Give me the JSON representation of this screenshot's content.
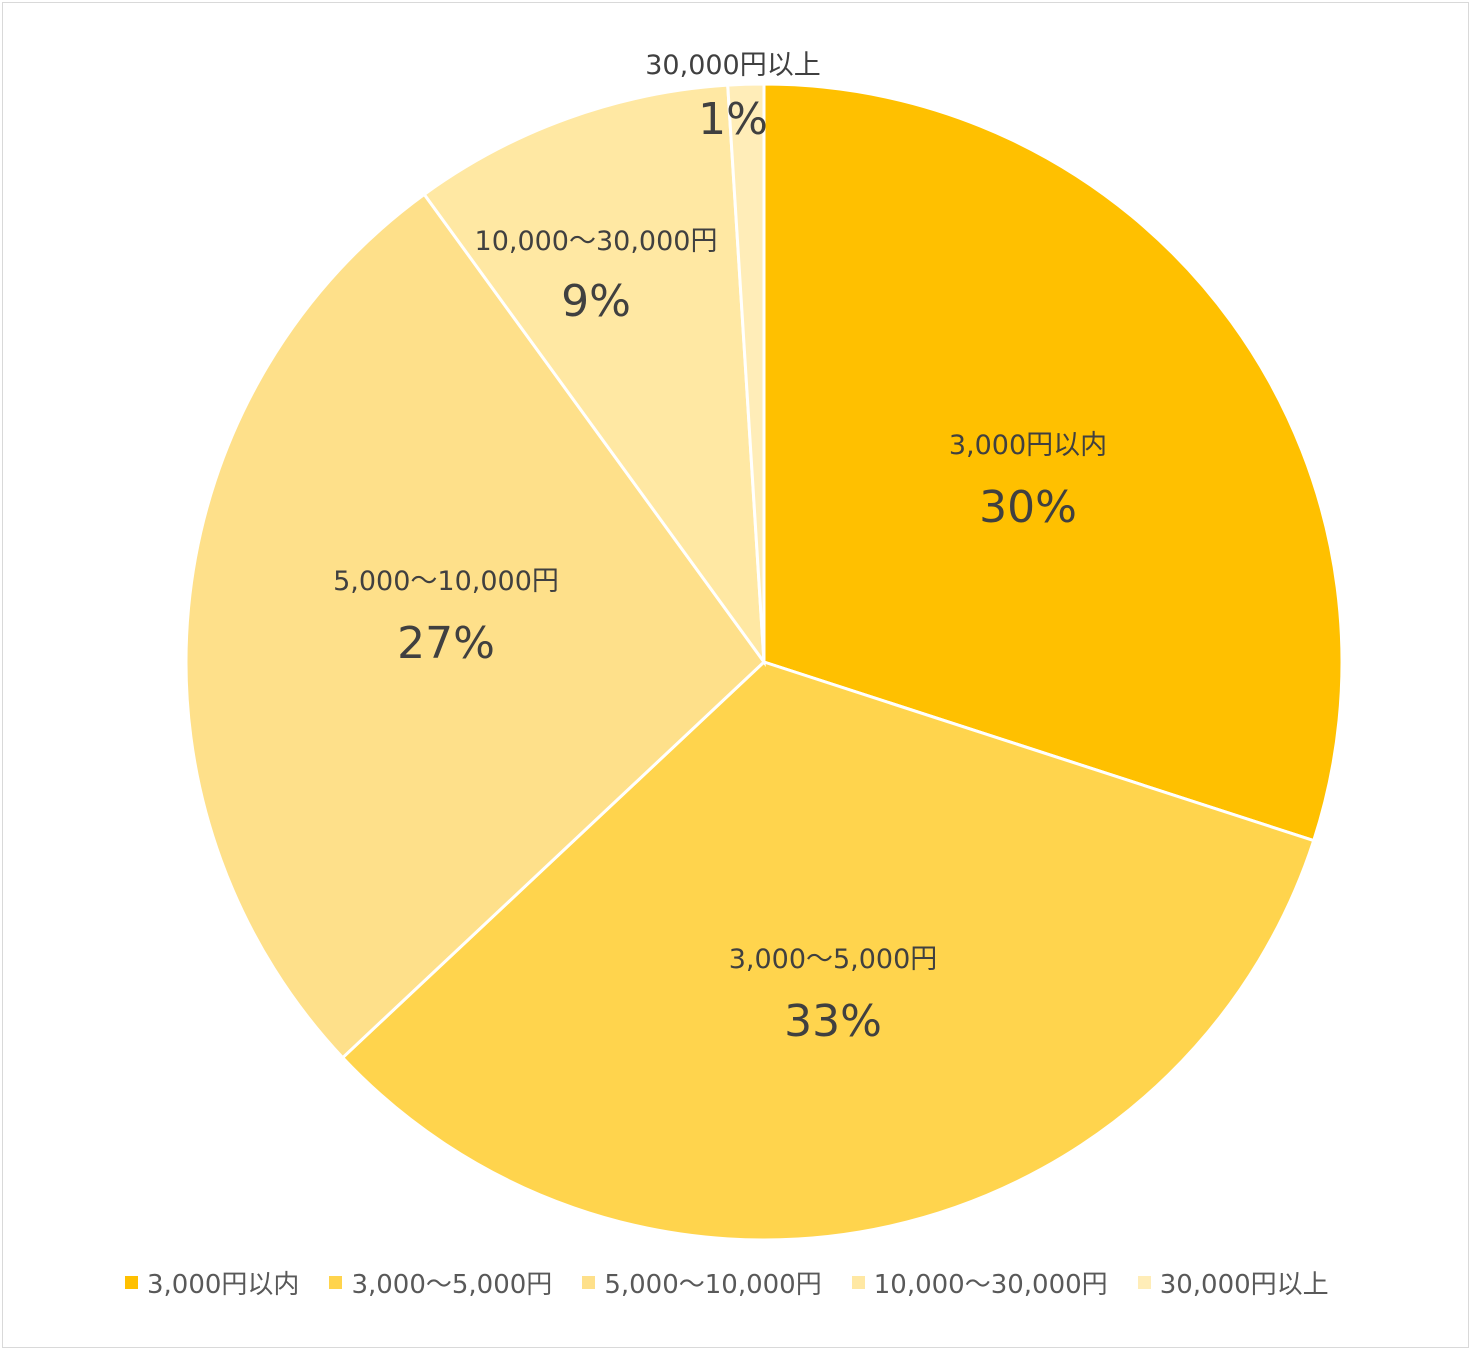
{
  "chart_data": {
    "type": "pie",
    "title": "",
    "legend_position": "bottom",
    "slices": [
      {
        "label": "3,000円以内",
        "value": 30,
        "display": "30%",
        "color": "#FFC000"
      },
      {
        "label": "3,000～5,000円",
        "value": 33,
        "display": "33%",
        "color": "#FFD44D"
      },
      {
        "label": "5,000～10,000円",
        "value": 27,
        "display": "27%",
        "color": "#FEE08A"
      },
      {
        "label": "10,000～30,000円",
        "value": 9,
        "display": "9%",
        "color": "#FFE8A3"
      },
      {
        "label": "30,000円以上",
        "value": 1,
        "display": "1%",
        "color": "#FFEDB8"
      }
    ]
  }
}
